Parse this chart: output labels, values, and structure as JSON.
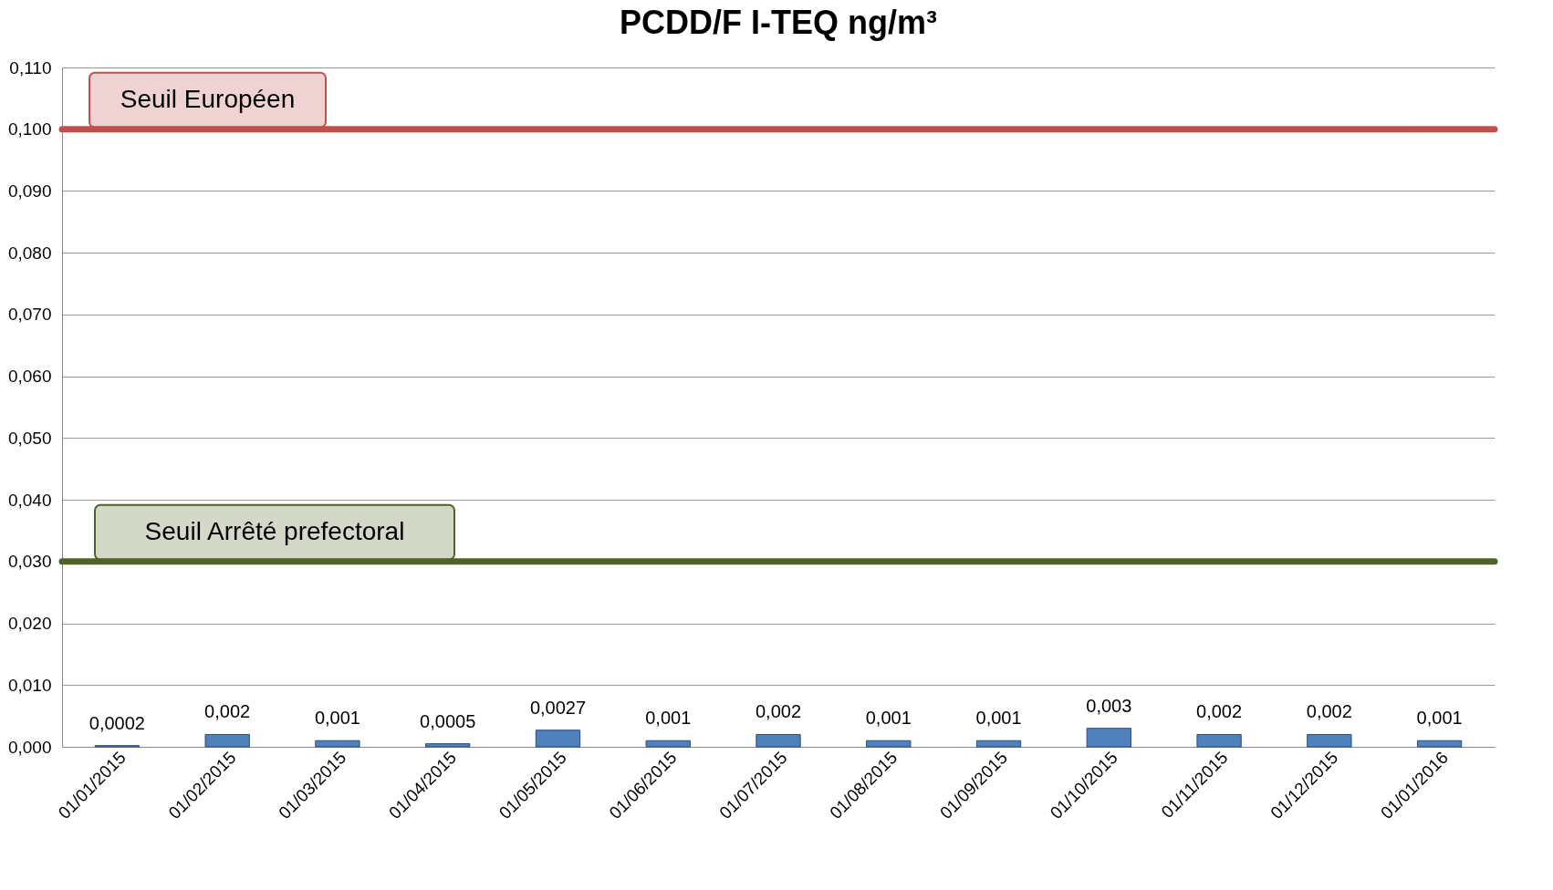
{
  "chart_data": {
    "type": "bar",
    "title": "PCDD/F I-TEQ ng/m³",
    "categories": [
      "01/01/2015",
      "01/02/2015",
      "01/03/2015",
      "01/04/2015",
      "01/05/2015",
      "01/06/2015",
      "01/07/2015",
      "01/08/2015",
      "01/09/2015",
      "01/10/2015",
      "01/11/2015",
      "01/12/2015",
      "01/01/2016"
    ],
    "values": [
      0.0002,
      0.002,
      0.001,
      0.0005,
      0.0027,
      0.001,
      0.002,
      0.001,
      0.001,
      0.003,
      0.002,
      0.002,
      0.001
    ],
    "value_labels": [
      "0,0002",
      "0,002",
      "0,001",
      "0,0005",
      "0,0027",
      "0,001",
      "0,002",
      "0,001",
      "0,001",
      "0,003",
      "0,002",
      "0,002",
      "0,001"
    ],
    "color": "#4f81bd",
    "ylim": [
      0,
      0.11
    ],
    "yticks": [
      {
        "value": 0,
        "label": "0,000"
      },
      {
        "value": 0.01,
        "label": "0,010"
      },
      {
        "value": 0.02,
        "label": "0,020"
      },
      {
        "value": 0.03,
        "label": "0,030"
      },
      {
        "value": 0.04,
        "label": "0,040"
      },
      {
        "value": 0.05,
        "label": "0,050"
      },
      {
        "value": 0.06,
        "label": "0,060"
      },
      {
        "value": 0.07,
        "label": "0,070"
      },
      {
        "value": 0.08,
        "label": "0,080"
      },
      {
        "value": 0.09,
        "label": "0,090"
      },
      {
        "value": 0.1,
        "label": "0,100"
      },
      {
        "value": 0.11,
        "label": "0,110"
      }
    ],
    "grid": "y",
    "ref_lines": [
      {
        "axis": "y",
        "value": 0.1,
        "label": "Seuil Européen",
        "color": "#c0504d"
      },
      {
        "axis": "y",
        "value": 0.03,
        "label": "Seuil Arrêté prefectoral",
        "color": "#4f6228"
      }
    ]
  }
}
